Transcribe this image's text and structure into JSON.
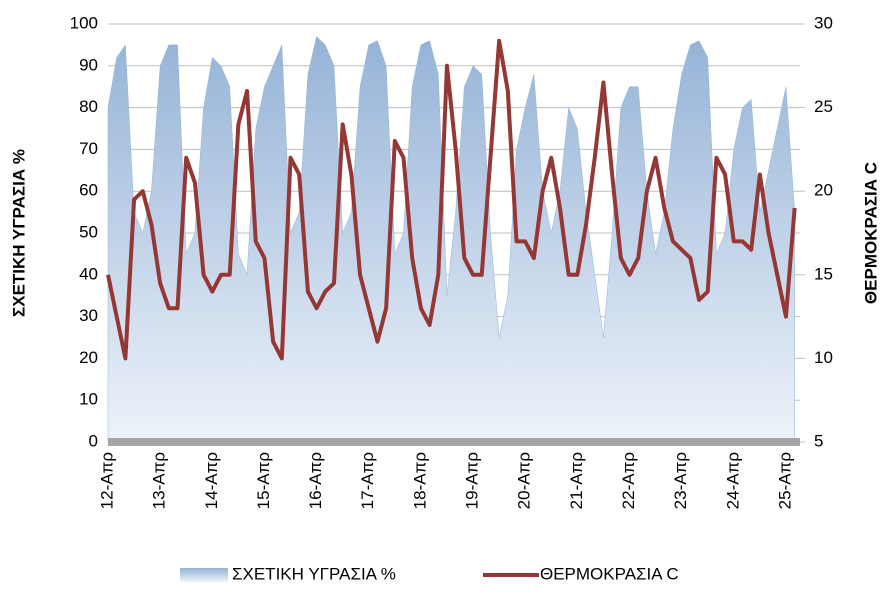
{
  "chart_data": {
    "type": "combo",
    "y_title": "ΣΧΕΤΙΚΗ ΥΓΡΑΣΙΑ %",
    "y2_title": "ΘΕΡΜΟΚΡΑΣΙΑ C",
    "categories": [
      "12-Απρ",
      null,
      null,
      null,
      null,
      null,
      "13-Απρ",
      null,
      null,
      null,
      null,
      null,
      "14-Απρ",
      null,
      null,
      null,
      null,
      null,
      "15-Απρ",
      null,
      null,
      null,
      null,
      null,
      "16-Απρ",
      null,
      null,
      null,
      null,
      null,
      "17-Απρ",
      null,
      null,
      null,
      null,
      null,
      "18-Απρ",
      null,
      null,
      null,
      null,
      null,
      "19-Απρ",
      null,
      null,
      null,
      null,
      null,
      "20-Απρ",
      null,
      null,
      null,
      null,
      null,
      "21-Απρ",
      null,
      null,
      null,
      null,
      null,
      "22-Απρ",
      null,
      null,
      null,
      null,
      null,
      "23-Απρ",
      null,
      null,
      null,
      null,
      null,
      "24-Απρ",
      null,
      null,
      null,
      null,
      null,
      "25-Απρ",
      null
    ],
    "series": [
      {
        "name": "ΣΧΕΤΙΚΗ ΥΓΡΑΣΙΑ %",
        "type": "area",
        "color": "#95b3d7",
        "values": [
          80,
          92,
          95,
          55,
          50,
          60,
          90,
          95,
          95,
          45,
          50,
          80,
          92,
          90,
          85,
          45,
          40,
          75,
          85,
          90,
          95,
          50,
          55,
          88,
          97,
          95,
          90,
          50,
          55,
          85,
          95,
          96,
          90,
          45,
          50,
          85,
          95,
          96,
          88,
          35,
          55,
          85,
          90,
          88,
          50,
          25,
          35,
          70,
          80,
          88,
          60,
          50,
          60,
          80,
          75,
          55,
          40,
          25,
          50,
          80,
          85,
          85,
          60,
          45,
          55,
          75,
          88,
          95,
          96,
          92,
          45,
          50,
          70,
          80,
          82,
          55,
          65,
          75,
          85,
          55
        ]
      },
      {
        "name": "ΘΕΡΜΟΚΡΑΣΙΑ C",
        "type": "line",
        "axis": "y2",
        "color": "#953735",
        "values": [
          15,
          12.5,
          10,
          19.5,
          20,
          18,
          14.5,
          13,
          13,
          22,
          20.5,
          15,
          14,
          15,
          15,
          24,
          26,
          17,
          16,
          11,
          10,
          22,
          21,
          14,
          13,
          14,
          14.5,
          24,
          21,
          15,
          13,
          11,
          13,
          23,
          22,
          16,
          13,
          12,
          15,
          27.5,
          22.5,
          16,
          15,
          15,
          22,
          29,
          26,
          17,
          17,
          16,
          20,
          22,
          19,
          15,
          15,
          18,
          22,
          26.5,
          21,
          16,
          15,
          16,
          20,
          22,
          19,
          17,
          16.5,
          16,
          13.5,
          14,
          22,
          21,
          17,
          17,
          16.5,
          21,
          17.5,
          15,
          12.5,
          19
        ]
      }
    ],
    "ylim": [
      0,
      100
    ],
    "yticks": [
      0,
      10,
      20,
      30,
      40,
      50,
      60,
      70,
      80,
      90,
      100
    ],
    "y2lim": [
      5,
      30
    ],
    "y2ticks": [
      5,
      10,
      15,
      20,
      25,
      30
    ],
    "grid": true,
    "legend": "bottom"
  }
}
